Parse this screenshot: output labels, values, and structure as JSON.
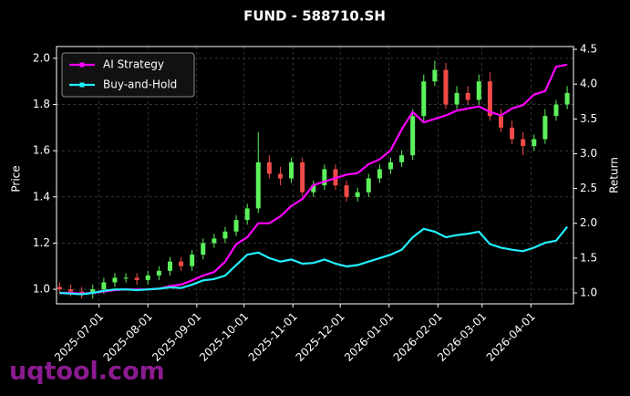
{
  "chart_data": {
    "type": "candlestick",
    "title": "FUND - 588710.SH",
    "ylabel": "Price",
    "y2label": "Return",
    "watermark": "uqtool.com",
    "x": [
      "2025-06-06",
      "2025-06-13",
      "2025-06-20",
      "2025-06-27",
      "2025-07-04",
      "2025-07-11",
      "2025-07-18",
      "2025-07-25",
      "2025-08-01",
      "2025-08-08",
      "2025-08-15",
      "2025-08-22",
      "2025-08-29",
      "2025-09-05",
      "2025-09-12",
      "2025-09-19",
      "2025-09-26",
      "2025-10-03",
      "2025-10-10",
      "2025-10-17",
      "2025-10-24",
      "2025-10-31",
      "2025-11-07",
      "2025-11-14",
      "2025-11-21",
      "2025-11-28",
      "2025-12-05",
      "2025-12-12",
      "2025-12-19",
      "2025-12-26",
      "2026-01-02",
      "2026-01-09",
      "2026-01-16",
      "2026-01-23",
      "2026-01-30",
      "2026-02-06",
      "2026-02-13",
      "2026-02-20",
      "2026-02-27",
      "2026-03-06",
      "2026-03-13",
      "2026-03-20",
      "2026-03-27",
      "2026-04-03",
      "2026-04-10",
      "2026-04-17",
      "2026-04-24"
    ],
    "open": [
      1.01,
      1.0,
      0.99,
      0.98,
      1.0,
      1.03,
      1.05,
      1.05,
      1.04,
      1.06,
      1.08,
      1.12,
      1.1,
      1.15,
      1.2,
      1.22,
      1.25,
      1.3,
      1.35,
      1.55,
      1.5,
      1.48,
      1.55,
      1.42,
      1.45,
      1.52,
      1.45,
      1.4,
      1.42,
      1.48,
      1.52,
      1.55,
      1.58,
      1.75,
      1.9,
      1.95,
      1.8,
      1.85,
      1.82,
      1.9,
      1.75,
      1.7,
      1.65,
      1.62,
      1.65,
      1.75,
      1.8
    ],
    "high": [
      1.03,
      1.02,
      1.01,
      1.02,
      1.05,
      1.07,
      1.07,
      1.07,
      1.08,
      1.1,
      1.14,
      1.14,
      1.17,
      1.22,
      1.24,
      1.27,
      1.32,
      1.37,
      1.68,
      1.58,
      1.53,
      1.57,
      1.57,
      1.47,
      1.54,
      1.54,
      1.47,
      1.44,
      1.5,
      1.54,
      1.57,
      1.6,
      1.78,
      1.93,
      1.99,
      1.98,
      1.88,
      1.88,
      1.93,
      1.94,
      1.78,
      1.73,
      1.68,
      1.67,
      1.78,
      1.82,
      1.88
    ],
    "low": [
      0.98,
      0.97,
      0.96,
      0.96,
      0.98,
      1.01,
      1.03,
      1.02,
      1.02,
      1.04,
      1.06,
      1.08,
      1.08,
      1.13,
      1.18,
      1.2,
      1.23,
      1.28,
      1.33,
      1.48,
      1.45,
      1.46,
      1.4,
      1.4,
      1.43,
      1.43,
      1.38,
      1.38,
      1.4,
      1.46,
      1.5,
      1.53,
      1.56,
      1.73,
      1.88,
      1.78,
      1.78,
      1.8,
      1.8,
      1.73,
      1.68,
      1.63,
      1.58,
      1.6,
      1.63,
      1.73,
      1.78
    ],
    "close": [
      1.0,
      0.99,
      0.98,
      1.0,
      1.03,
      1.05,
      1.05,
      1.04,
      1.06,
      1.08,
      1.12,
      1.1,
      1.15,
      1.2,
      1.22,
      1.25,
      1.3,
      1.35,
      1.55,
      1.5,
      1.48,
      1.55,
      1.42,
      1.45,
      1.52,
      1.45,
      1.4,
      1.42,
      1.48,
      1.52,
      1.55,
      1.58,
      1.75,
      1.9,
      1.95,
      1.8,
      1.85,
      1.82,
      1.9,
      1.75,
      1.7,
      1.65,
      1.62,
      1.65,
      1.75,
      1.8,
      1.85
    ],
    "up_color": "#5cf25c",
    "down_color": "#f24a4a",
    "series": [
      {
        "name": "AI Strategy",
        "color": "#ff00ff",
        "axis": "y2",
        "values": [
          1.0,
          1.0,
          0.99,
          1.0,
          1.02,
          1.04,
          1.05,
          1.05,
          1.05,
          1.06,
          1.1,
          1.12,
          1.18,
          1.25,
          1.3,
          1.45,
          1.7,
          1.8,
          2.0,
          2.0,
          2.1,
          2.25,
          2.35,
          2.55,
          2.6,
          2.65,
          2.7,
          2.72,
          2.85,
          2.92,
          3.05,
          3.35,
          3.6,
          3.45,
          3.5,
          3.55,
          3.62,
          3.65,
          3.68,
          3.6,
          3.55,
          3.65,
          3.7,
          3.85,
          3.9,
          4.25,
          4.28
        ]
      },
      {
        "name": "Buy-and-Hold",
        "color": "#22f0ff",
        "axis": "y2",
        "values": [
          1.0,
          0.99,
          0.98,
          1.0,
          1.03,
          1.05,
          1.05,
          1.04,
          1.05,
          1.06,
          1.08,
          1.07,
          1.12,
          1.18,
          1.2,
          1.25,
          1.4,
          1.55,
          1.58,
          1.5,
          1.45,
          1.48,
          1.42,
          1.43,
          1.48,
          1.42,
          1.38,
          1.4,
          1.45,
          1.5,
          1.55,
          1.62,
          1.8,
          1.92,
          1.88,
          1.8,
          1.83,
          1.85,
          1.88,
          1.7,
          1.65,
          1.62,
          1.6,
          1.65,
          1.72,
          1.75,
          1.95
        ]
      }
    ],
    "xlim": [
      "2025-06-04",
      "2026-04-28"
    ],
    "xticks": [
      "2025-07-01",
      "2025-08-01",
      "2025-09-01",
      "2025-10-01",
      "2025-11-01",
      "2025-12-01",
      "2026-01-01",
      "2026-02-01",
      "2026-03-01",
      "2026-04-01"
    ],
    "ylim": [
      0.937,
      2.051
    ],
    "yticks": [
      {
        "value": 1,
        "label": "1.0"
      },
      1.2,
      1.4,
      1.6,
      1.8,
      {
        "value": 2,
        "label": "2.0"
      }
    ],
    "y2lim": [
      0.843,
      4.54
    ],
    "y2ticks": [
      {
        "value": 1,
        "label": "1.0"
      },
      1.5,
      {
        "value": 2,
        "label": "2.0"
      },
      2.5,
      {
        "value": 3,
        "label": "3.0"
      },
      3.5,
      {
        "value": 4,
        "label": "4.0"
      },
      4.5
    ],
    "grid": true,
    "legend": "upper left"
  }
}
